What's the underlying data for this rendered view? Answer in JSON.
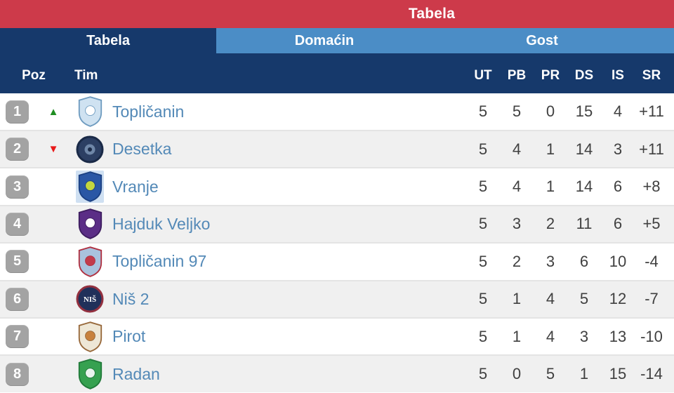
{
  "widget": {
    "title": "Tabela"
  },
  "colors": {
    "header_red": "#cd3a4a",
    "navy": "#16396b",
    "tab_blue": "#4b8dc6",
    "team_name": "#5389b7",
    "row_alt": "#f0f0f0",
    "badge_gray": "#a3a3a3",
    "up_green": "#1f8e22",
    "down_red": "#e81919",
    "stat_text": "#404040",
    "separator": "#e4e4e4"
  },
  "icons": {
    "up": "▲",
    "down": "▼"
  },
  "tabs": [
    {
      "label": "Tabela",
      "active": true
    },
    {
      "label": "Domaćin",
      "active": false
    },
    {
      "label": "Gost",
      "active": false
    }
  ],
  "table": {
    "headers": {
      "pos": "Poz",
      "team": "Tim",
      "stats": [
        "UT",
        "PB",
        "PR",
        "DS",
        "IS",
        "SR"
      ]
    },
    "rows": [
      {
        "pos": "1",
        "movement": "up",
        "team": "Topličanin",
        "stats": [
          "5",
          "5",
          "0",
          "15",
          "4",
          "+11"
        ],
        "logo": {
          "shape": "shield",
          "c1": "#cfe2f1",
          "c2": "#ffffff",
          "c3": "#6f9cc0"
        }
      },
      {
        "pos": "2",
        "movement": "down",
        "team": "Desetka",
        "stats": [
          "5",
          "4",
          "1",
          "14",
          "3",
          "+11"
        ],
        "logo": {
          "shape": "circle",
          "c1": "#2c3f63",
          "c2": "#6f87a8",
          "c3": "#1a2a47"
        }
      },
      {
        "pos": "3",
        "movement": "none",
        "team": "Vranje",
        "stats": [
          "5",
          "4",
          "1",
          "14",
          "6",
          "+8"
        ],
        "logo": {
          "shape": "shield",
          "c1": "#2a57a5",
          "c2": "#c3d63f",
          "c3": "#1c4183",
          "bg": "#cfe0f2"
        }
      },
      {
        "pos": "4",
        "movement": "none",
        "team": "Hajduk Veljko",
        "stats": [
          "5",
          "3",
          "2",
          "11",
          "6",
          "+5"
        ],
        "logo": {
          "shape": "shield",
          "c1": "#5b2e86",
          "c2": "#ffffff",
          "c3": "#3e1d60"
        }
      },
      {
        "pos": "5",
        "movement": "none",
        "team": "Topličanin 97",
        "stats": [
          "5",
          "2",
          "3",
          "6",
          "10",
          "-4"
        ],
        "logo": {
          "shape": "shield",
          "c1": "#a9c2dd",
          "c2": "#c23a4a",
          "c3": "#b03040"
        }
      },
      {
        "pos": "6",
        "movement": "none",
        "team": "Niš 2",
        "stats": [
          "5",
          "1",
          "4",
          "5",
          "12",
          "-7"
        ],
        "logo": {
          "shape": "circle",
          "c1": "#20305a",
          "c2": "#93303f",
          "c3": "#101b38",
          "text": "NIŠ"
        }
      },
      {
        "pos": "7",
        "movement": "none",
        "team": "Pirot",
        "stats": [
          "5",
          "1",
          "4",
          "3",
          "13",
          "-10"
        ],
        "logo": {
          "shape": "shield",
          "c1": "#eee7d6",
          "c2": "#c8813d",
          "c3": "#97683a"
        }
      },
      {
        "pos": "8",
        "movement": "none",
        "team": "Radan",
        "stats": [
          "5",
          "0",
          "5",
          "1",
          "15",
          "-14"
        ],
        "logo": {
          "shape": "shield",
          "c1": "#36a150",
          "c2": "#eaf5ee",
          "c3": "#217a3a"
        }
      }
    ]
  }
}
